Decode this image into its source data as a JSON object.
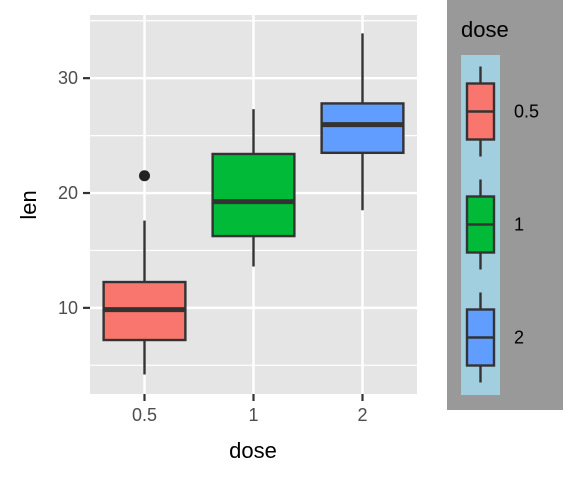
{
  "chart_data": {
    "type": "box",
    "xlabel": "dose",
    "ylabel": "len",
    "categories": [
      "0.5",
      "1",
      "2"
    ],
    "ylim": [
      2.5,
      35.5
    ],
    "yticks": [
      10,
      20,
      30
    ],
    "grid": true,
    "boxes": [
      {
        "category": "0.5",
        "min": 4.2,
        "q1": 7.2,
        "median": 9.85,
        "q3": 12.25,
        "max": 17.6,
        "outliers": [
          21.5
        ],
        "color": "#F8766D"
      },
      {
        "category": "1",
        "min": 13.6,
        "q1": 16.25,
        "median": 19.25,
        "q3": 23.4,
        "max": 27.3,
        "outliers": [],
        "color": "#00BA38"
      },
      {
        "category": "2",
        "min": 18.5,
        "q1": 23.5,
        "median": 25.95,
        "q3": 27.8,
        "max": 33.9,
        "outliers": [],
        "color": "#619CFF"
      }
    ],
    "legend": {
      "title": "dose",
      "position": "right",
      "entries": [
        "0.5",
        "1",
        "2"
      ],
      "background": "#999999",
      "key_background": "#a1cfe0"
    },
    "panel_background": "#e5e5e5"
  }
}
